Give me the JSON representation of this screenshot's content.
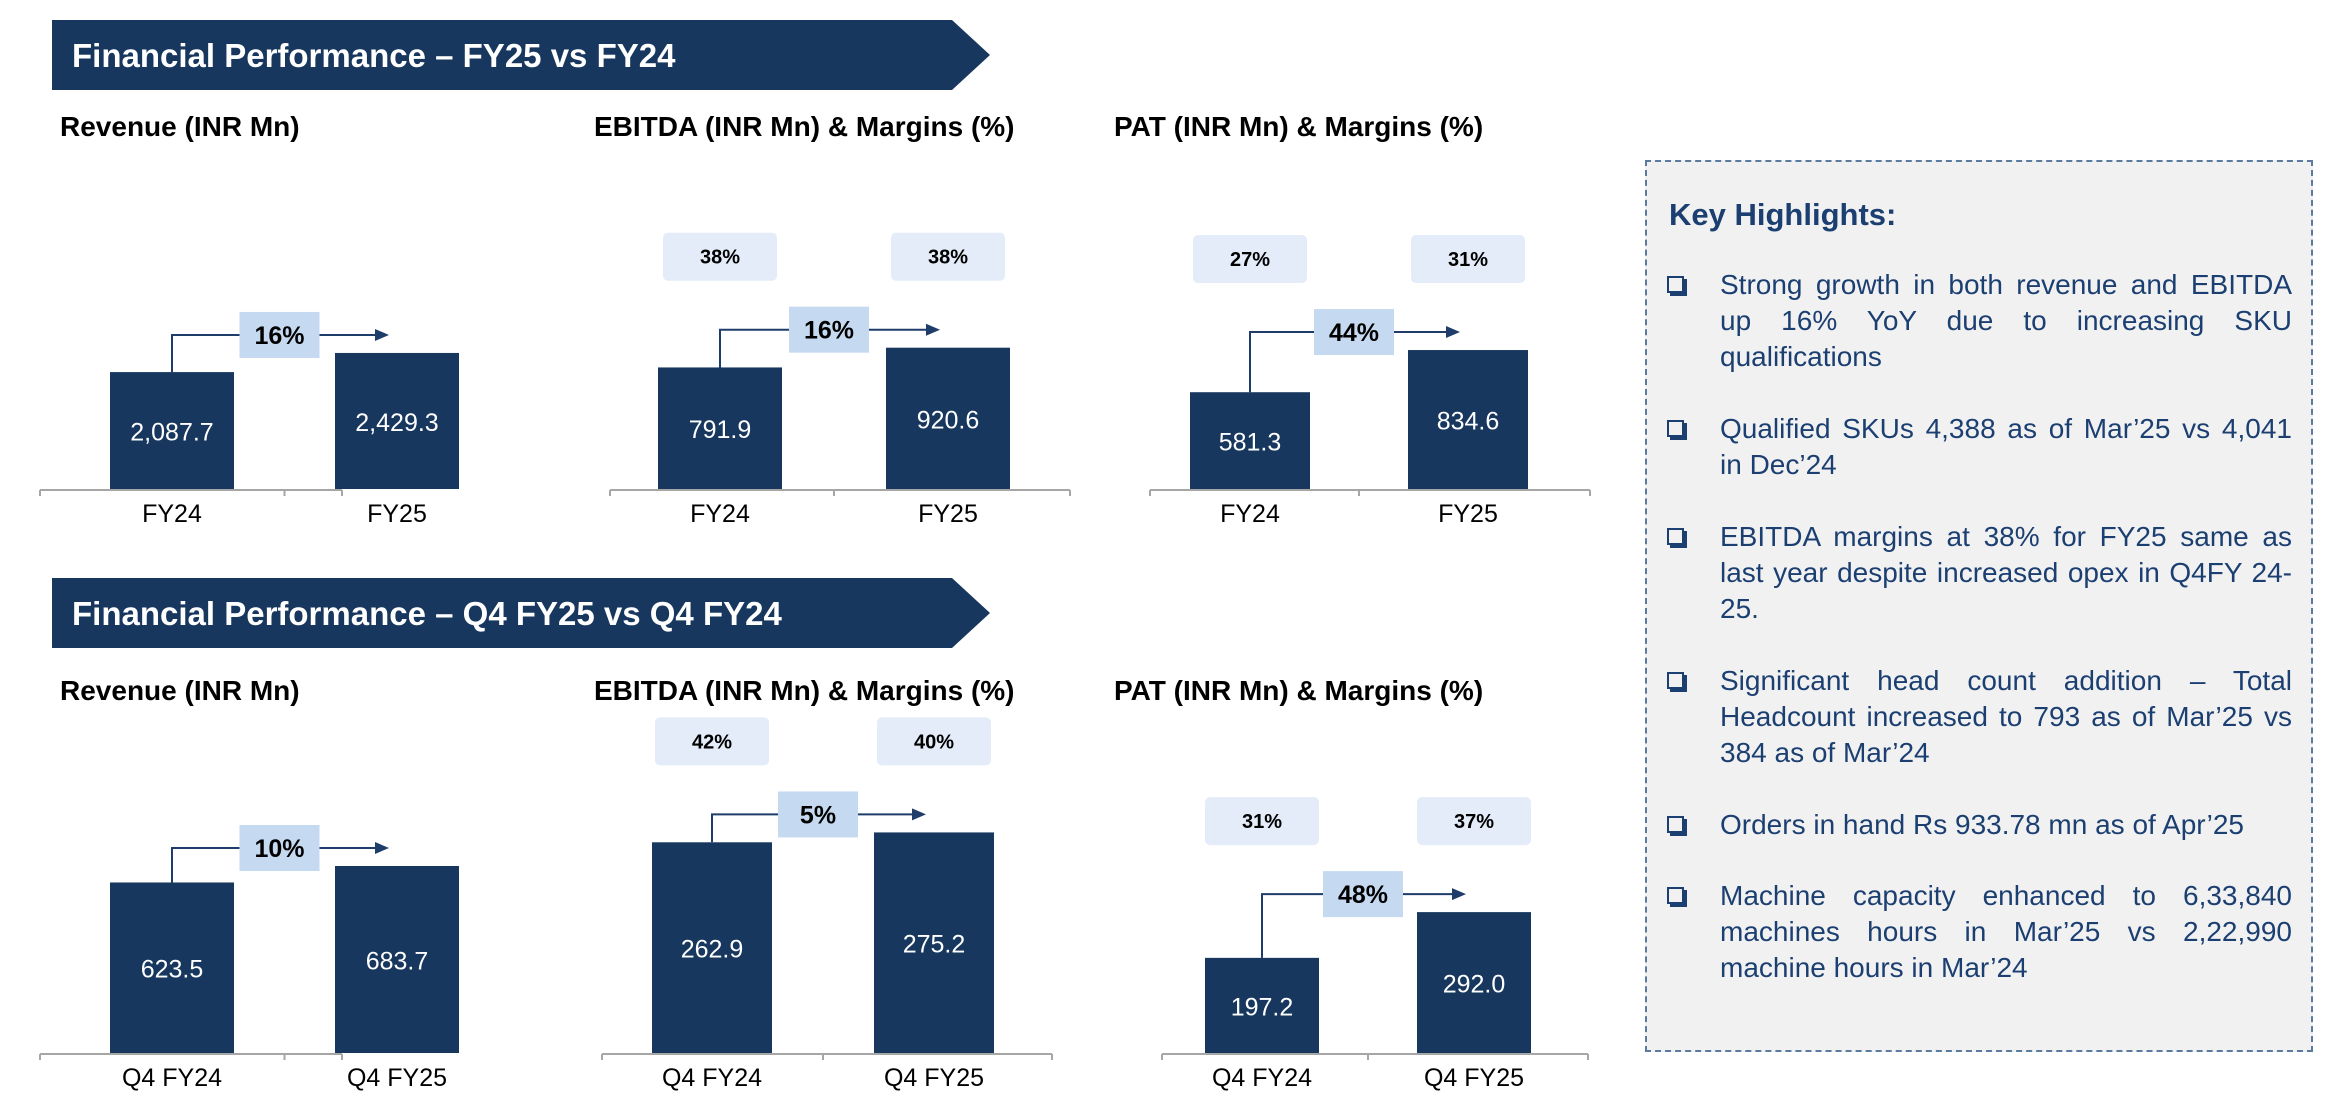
{
  "colors": {
    "banner": "#17375e",
    "bar": "#17375e",
    "growth_box": "#c5d9f1",
    "margin_box": "#e3ecf8",
    "highlight_text": "#1c3f72",
    "panel_bg": "#f1f1f1"
  },
  "banners": {
    "fy": "Financial Performance – FY25 vs FY24",
    "q4": "Financial Performance – Q4 FY25 vs Q4 FY24"
  },
  "chart_data": [
    {
      "type": "bar",
      "title": "Revenue (INR Mn)",
      "categories": [
        "FY24",
        "FY25"
      ],
      "values": [
        2087.7,
        2429.3
      ],
      "labels": [
        "2,087.7",
        "2,429.3"
      ],
      "growth": "16%",
      "margins": []
    },
    {
      "type": "bar",
      "title": "EBITDA (INR Mn) & Margins (%)",
      "categories": [
        "FY24",
        "FY25"
      ],
      "values": [
        791.9,
        920.6
      ],
      "labels": [
        "791.9",
        "920.6"
      ],
      "growth": "16%",
      "margins": [
        "38%",
        "38%"
      ]
    },
    {
      "type": "bar",
      "title": "PAT (INR Mn) & Margins (%)",
      "categories": [
        "FY24",
        "FY25"
      ],
      "values": [
        581.3,
        834.6
      ],
      "labels": [
        "581.3",
        "834.6"
      ],
      "growth": "44%",
      "margins": [
        "27%",
        "31%"
      ]
    },
    {
      "type": "bar",
      "title": "Revenue (INR Mn)",
      "categories": [
        "Q4 FY24",
        "Q4 FY25"
      ],
      "values": [
        623.5,
        683.7
      ],
      "labels": [
        "623.5",
        "683.7"
      ],
      "growth": "10%",
      "margins": []
    },
    {
      "type": "bar",
      "title": "EBITDA (INR Mn) & Margins (%)",
      "categories": [
        "Q4 FY24",
        "Q4 FY25"
      ],
      "values": [
        262.9,
        275.2
      ],
      "labels": [
        "262.9",
        "275.2"
      ],
      "growth": "5%",
      "margins": [
        "42%",
        "40%"
      ]
    },
    {
      "type": "bar",
      "title": "PAT (INR Mn) & Margins (%)",
      "categories": [
        "Q4 FY24",
        "Q4 FY25"
      ],
      "values": [
        197.2,
        292.0
      ],
      "labels": [
        "197.2",
        "292.0"
      ],
      "growth": "48%",
      "margins": [
        "31%",
        "37%"
      ]
    }
  ],
  "highlights": {
    "title": "Key Highlights:",
    "items": [
      "Strong growth in both revenue and EBITDA up 16% YoY due to increasing SKU qualifications",
      "Qualified SKUs 4,388 as of Mar’25 vs 4,041 in Dec’24",
      "EBITDA margins at 38% for FY25 same as last year despite increased opex in Q4FY 24-25.",
      "Significant head count addition – Total Headcount increased to 793 as of Mar’25 vs 384 as of Mar’24",
      "Orders in hand Rs 933.78 mn as of Apr’25",
      "Machine capacity enhanced to 6,33,840 machines hours in Mar’25 vs 2,22,990 machine hours in Mar’24"
    ]
  }
}
